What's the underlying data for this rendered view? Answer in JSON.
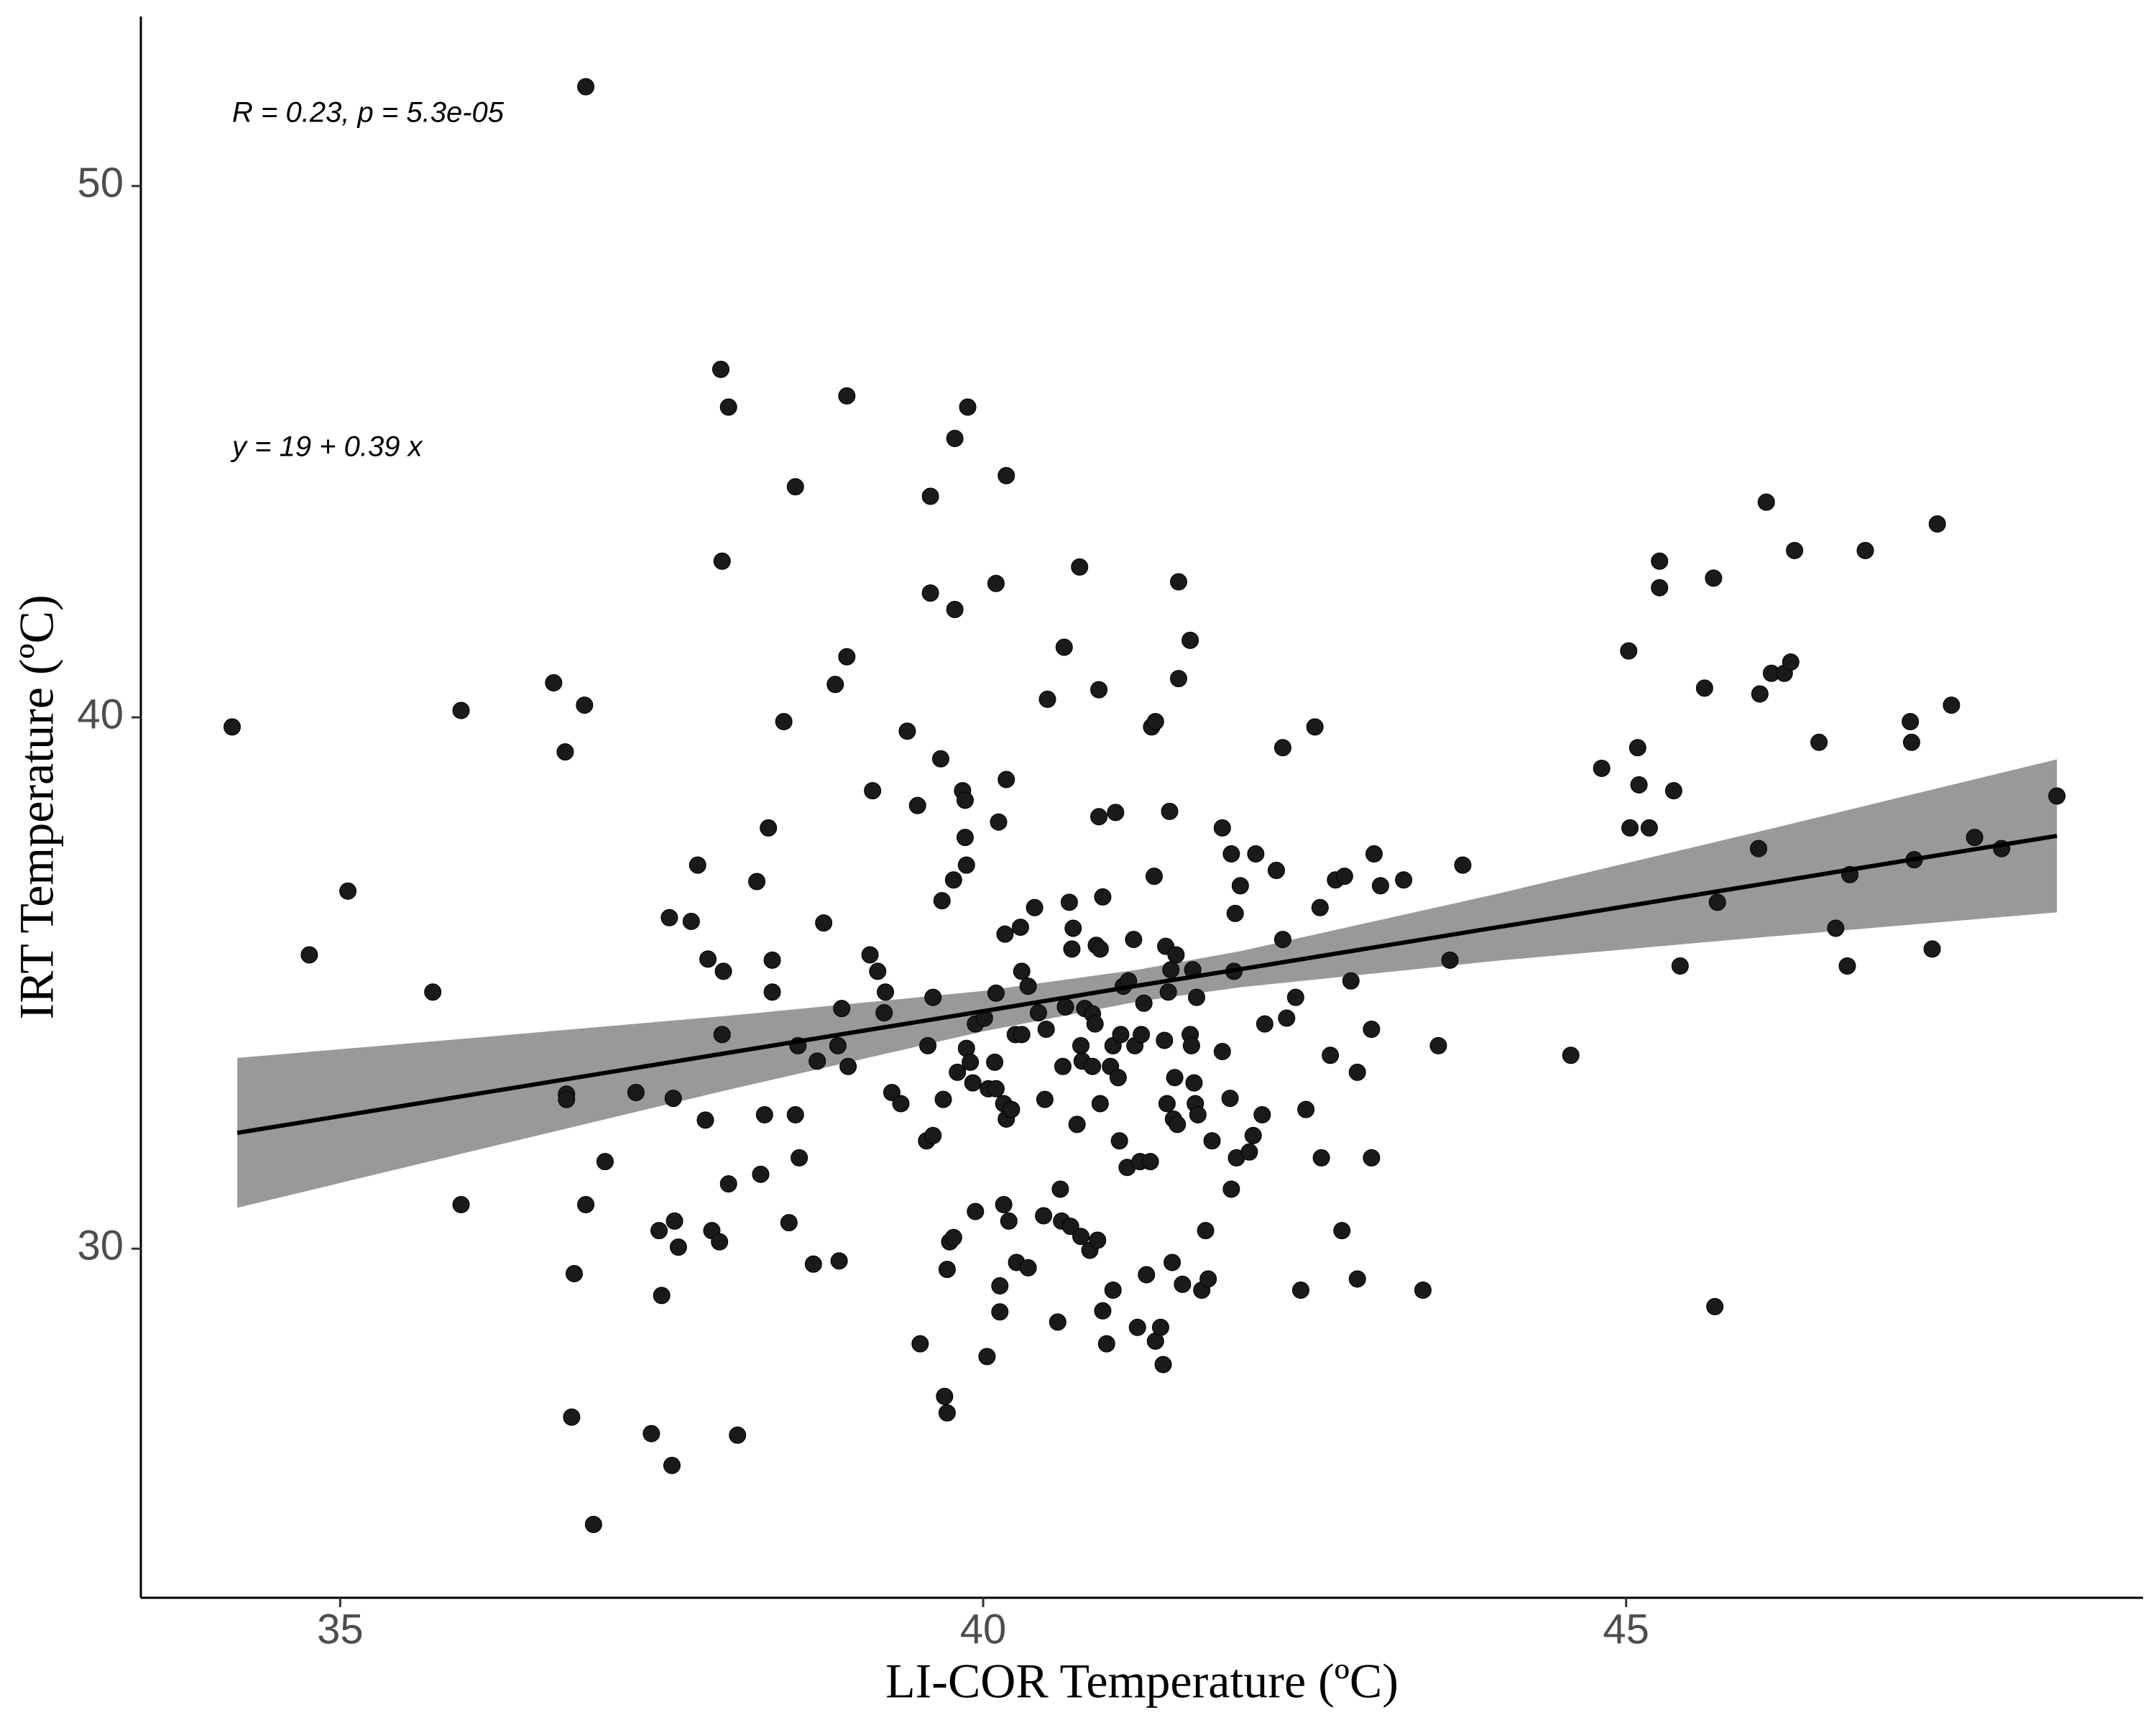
{
  "chart_data": {
    "type": "scatter",
    "xlabel": "LI-COR Temperature (ºC)",
    "ylabel": "IRT Temperature (ºC)",
    "annotations": [
      "R = 0.23, p = 5.3e-05",
      "y = 19 + 0.39 x"
    ],
    "xlim": [
      33.45,
      49.02
    ],
    "ylim": [
      23.43,
      53.19
    ],
    "xticks": [
      35,
      40,
      45
    ],
    "yticks": [
      30,
      40,
      50
    ],
    "color": "#1a1a1a",
    "x": [
      34.16,
      34.76,
      35.06,
      35.72,
      35.94,
      35.94,
      36.66,
      36.75,
      36.9,
      36.91,
      36.76,
      36.76,
      36.91,
      36.82,
      36.8,
      36.97,
      37.06,
      37.3,
      37.42,
      37.48,
      37.5,
      37.58,
      37.56,
      37.59,
      37.6,
      37.63,
      37.73,
      37.78,
      37.84,
      37.86,
      37.89,
      37.95,
      37.96,
      37.97,
      37.98,
      37.97,
      38.02,
      38.02,
      38.09,
      38.24,
      38.27,
      38.3,
      38.33,
      38.36,
      38.36,
      38.45,
      38.49,
      38.54,
      38.54,
      38.56,
      38.57,
      38.68,
      38.71,
      38.76,
      38.85,
      38.87,
      38.88,
      38.9,
      38.94,
      38.94,
      38.95,
      39.12,
      39.14,
      39.18,
      39.24,
      39.23,
      39.29,
      39.36,
      39.41,
      39.49,
      39.51,
      39.56,
      39.57,
      39.59,
      39.59,
      39.61,
      39.61,
      39.67,
      39.68,
      39.69,
      39.7,
      39.72,
      39.72,
      39.74,
      39.77,
      39.78,
      39.78,
      39.77,
      39.8,
      39.84,
      39.86,
      39.86,
      39.87,
      39.88,
      39.87,
      39.9,
      39.92,
      39.94,
      39.94,
      40.01,
      40.03,
      40.04,
      40.09,
      40.1,
      40.1,
      40.1,
      40.12,
      40.13,
      40.13,
      40.16,
      40.16,
      40.17,
      40.18,
      40.18,
      40.18,
      40.2,
      40.22,
      40.26,
      40.25,
      40.29,
      40.3,
      40.3,
      40.35,
      40.35,
      40.4,
      40.43,
      40.47,
      40.48,
      40.49,
      40.5,
      40.58,
      40.6,
      40.61,
      40.62,
      40.63,
      40.64,
      40.67,
      40.68,
      40.7,
      40.69,
      40.73,
      40.75,
      40.76,
      40.76,
      40.77,
      40.79,
      40.83,
      40.85,
      40.85,
      40.87,
      40.88,
      40.89,
      40.9,
      40.9,
      40.91,
      40.91,
      40.93,
      40.93,
      40.96,
      40.99,
      41.01,
      41.01,
      41.03,
      41.05,
      41.06,
      41.07,
      41.09,
      41.12,
      41.13,
      41.17,
      41.18,
      41.2,
      41.22,
      41.23,
      41.25,
      41.27,
      41.3,
      41.31,
      41.33,
      41.34,
      41.34,
      41.38,
      41.4,
      41.41,
      41.42,
      41.43,
      41.44,
      41.45,
      41.46,
      41.47,
      41.48,
      41.49,
      41.5,
      41.51,
      41.52,
      41.52,
      41.55,
      41.61,
      41.61,
      41.62,
      41.63,
      41.64,
      41.65,
      41.66,
      41.67,
      41.7,
      41.73,
      41.75,
      41.78,
      41.86,
      41.86,
      41.92,
      41.93,
      41.93,
      41.95,
      41.96,
      41.97,
      42.0,
      42.07,
      42.1,
      42.12,
      42.17,
      42.19,
      42.28,
      42.33,
      42.33,
      42.36,
      42.43,
      42.47,
      42.51,
      42.58,
      42.62,
      42.63,
      42.7,
      42.74,
      42.79,
      42.81,
      42.86,
      42.91,
      42.91,
      43.02,
      43.02,
      43.04,
      43.09,
      43.27,
      43.42,
      43.54,
      43.63,
      43.73,
      44.57,
      44.81,
      45.02,
      45.03,
      45.09,
      45.1,
      45.18,
      45.26,
      45.26,
      45.37,
      45.42,
      45.61,
      45.68,
      45.69,
      45.71,
      46.03,
      46.04,
      46.09,
      46.13,
      46.23,
      46.28,
      46.31,
      46.5,
      46.63,
      46.72,
      46.74,
      46.86,
      47.21,
      47.22,
      47.24,
      47.38,
      47.42,
      47.53,
      47.71,
      47.92,
      48.35
    ],
    "y": [
      39.82,
      35.53,
      36.73,
      34.83,
      40.13,
      30.83,
      40.65,
      39.35,
      40.23,
      51.87,
      32.91,
      32.81,
      30.83,
      29.53,
      26.83,
      24.81,
      31.64,
      32.94,
      26.52,
      30.34,
      29.12,
      25.92,
      36.23,
      32.83,
      30.52,
      30.03,
      36.16,
      37.22,
      32.42,
      35.45,
      30.34,
      30.13,
      46.55,
      42.94,
      35.22,
      34.03,
      45.84,
      31.22,
      26.49,
      36.91,
      31.4,
      32.52,
      37.92,
      35.43,
      34.83,
      39.92,
      30.49,
      44.34,
      32.52,
      33.82,
      31.71,
      29.71,
      33.53,
      36.13,
      40.62,
      33.82,
      29.77,
      34.52,
      41.14,
      46.05,
      33.43,
      35.53,
      38.62,
      35.22,
      34.83,
      34.44,
      32.94,
      32.73,
      39.74,
      38.34,
      28.21,
      32.03,
      33.82,
      44.16,
      42.34,
      34.73,
      32.13,
      39.22,
      36.55,
      32.81,
      27.22,
      26.91,
      29.61,
      30.13,
      36.94,
      45.25,
      42.03,
      30.21,
      33.32,
      38.62,
      38.44,
      37.74,
      37.22,
      45.84,
      33.77,
      33.51,
      33.12,
      34.23,
      30.7,
      34.34,
      27.97,
      33.01,
      33.51,
      34.81,
      33.01,
      42.52,
      38.03,
      29.3,
      28.81,
      30.83,
      32.73,
      35.92,
      44.55,
      38.83,
      32.44,
      30.52,
      32.62,
      29.74,
      34.03,
      36.05,
      35.22,
      34.03,
      29.64,
      34.94,
      36.42,
      34.44,
      30.62,
      32.81,
      34.13,
      40.34,
      28.62,
      31.12,
      30.52,
      33.43,
      41.32,
      34.55,
      36.52,
      30.42,
      36.03,
      35.64,
      32.34,
      42.83,
      33.82,
      30.23,
      33.53,
      34.52,
      29.97,
      33.43,
      34.42,
      34.23,
      35.71,
      30.16,
      38.13,
      40.52,
      35.64,
      32.73,
      36.62,
      28.83,
      28.21,
      33.43,
      29.22,
      33.82,
      38.21,
      33.22,
      32.03,
      34.03,
      34.94,
      31.53,
      35.04,
      35.82,
      33.82,
      28.52,
      31.64,
      34.03,
      34.62,
      29.51,
      31.64,
      39.82,
      37.01,
      39.92,
      28.26,
      28.52,
      27.82,
      33.92,
      35.69,
      32.73,
      34.83,
      38.23,
      35.25,
      29.74,
      32.44,
      33.22,
      35.53,
      32.34,
      42.55,
      40.73,
      29.33,
      41.45,
      34.03,
      33.82,
      35.25,
      33.12,
      32.73,
      34.73,
      32.52,
      29.22,
      30.34,
      29.43,
      32.03,
      37.92,
      33.71,
      32.83,
      37.43,
      31.12,
      35.22,
      36.31,
      31.71,
      36.83,
      31.82,
      32.13,
      37.43,
      32.52,
      34.23,
      37.12,
      35.82,
      39.43,
      34.34,
      34.73,
      29.22,
      32.62,
      39.82,
      36.42,
      31.71,
      33.64,
      36.94,
      30.34,
      37.01,
      35.04,
      33.32,
      29.43,
      34.13,
      31.71,
      37.43,
      36.83,
      36.94,
      29.22,
      33.82,
      35.43,
      37.22,
      33.64,
      39.04,
      41.25,
      37.92,
      39.43,
      38.73,
      37.92,
      42.94,
      42.44,
      38.62,
      35.32,
      40.55,
      42.62,
      28.91,
      36.52,
      37.53,
      40.44,
      44.05,
      40.83,
      40.83,
      41.04,
      43.14,
      39.53,
      36.03,
      35.32,
      37.04,
      43.14,
      39.92,
      39.53,
      37.32,
      35.64,
      43.64,
      40.23,
      37.74,
      37.53,
      38.52
    ],
    "fit": {
      "color": "#000000",
      "band_color": "#999999",
      "x": [
        34.2,
        36,
        38,
        40,
        41.2,
        42,
        44,
        46,
        48.35
      ],
      "y": [
        32.18,
        32.89,
        33.68,
        34.47,
        34.95,
        35.26,
        36.05,
        36.84,
        37.77
      ],
      "lower": [
        30.77,
        31.82,
        32.98,
        34.09,
        34.65,
        34.92,
        35.42,
        35.85,
        36.33
      ],
      "upper": [
        33.59,
        33.96,
        34.38,
        34.85,
        35.25,
        35.6,
        36.68,
        37.83,
        39.21
      ]
    }
  }
}
